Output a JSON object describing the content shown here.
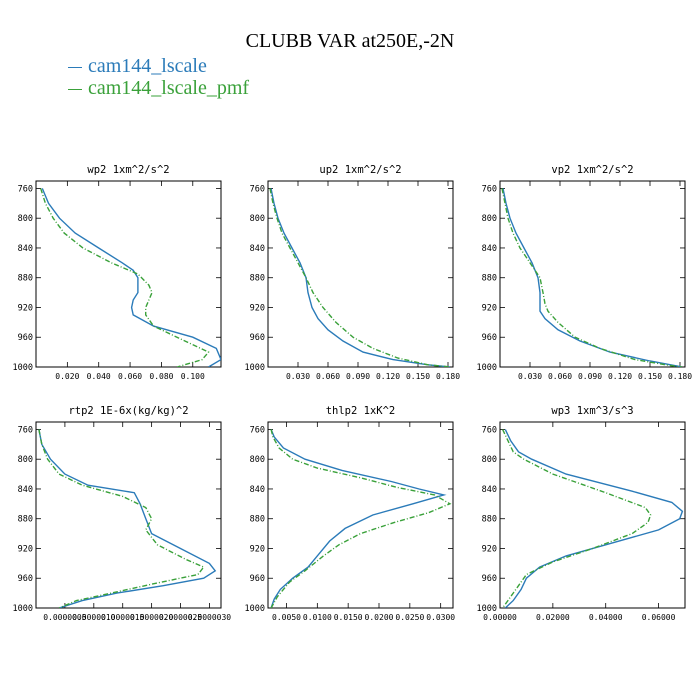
{
  "title": "CLUBB VAR at250E,-2N",
  "legend": [
    {
      "name": "cam144_lscale",
      "color": "#2b7bb9"
    },
    {
      "name": "cam144_lscale_pmf",
      "color": "#3aa13a"
    }
  ],
  "chart_data": [
    {
      "type": "line",
      "title": "wp2  1xm^2/s^2",
      "xlim": [
        0,
        0.118
      ],
      "ylim": [
        1000,
        750
      ],
      "xticks": [
        0.02,
        0.04,
        0.06,
        0.08,
        0.1
      ],
      "xticklabels": [
        "0.020",
        "0.040",
        "0.060",
        "0.080",
        "0.100"
      ],
      "yticks": [
        760,
        800,
        840,
        880,
        920,
        960,
        1000
      ],
      "series": [
        {
          "name": "cam144_lscale",
          "x": [
            0.004,
            0.008,
            0.015,
            0.025,
            0.04,
            0.055,
            0.062,
            0.065,
            0.065,
            0.062,
            0.061,
            0.062,
            0.075,
            0.1,
            0.115,
            0.118,
            0.11
          ],
          "y": [
            760,
            780,
            800,
            820,
            840,
            860,
            870,
            880,
            900,
            910,
            920,
            930,
            945,
            960,
            975,
            990,
            1000
          ]
        },
        {
          "name": "cam144_lscale_pmf",
          "x": [
            0.003,
            0.006,
            0.011,
            0.018,
            0.03,
            0.048,
            0.065,
            0.072,
            0.074,
            0.072,
            0.07,
            0.07,
            0.075,
            0.095,
            0.11,
            0.106,
            0.09
          ],
          "y": [
            760,
            780,
            800,
            820,
            840,
            860,
            875,
            890,
            900,
            910,
            920,
            930,
            945,
            965,
            980,
            990,
            1000
          ]
        }
      ]
    },
    {
      "type": "line",
      "title": "up2  1xm^2/s^2",
      "xlim": [
        0,
        0.185
      ],
      "ylim": [
        1000,
        750
      ],
      "xticks": [
        0.03,
        0.06,
        0.09,
        0.12,
        0.15,
        0.18
      ],
      "xticklabels": [
        "0.030",
        "0.060",
        "0.090",
        "0.120",
        "0.150",
        "0.180"
      ],
      "yticks": [
        760,
        800,
        840,
        880,
        920,
        960,
        1000
      ],
      "series": [
        {
          "name": "cam144_lscale",
          "x": [
            0.003,
            0.006,
            0.01,
            0.016,
            0.024,
            0.032,
            0.038,
            0.04,
            0.044,
            0.05,
            0.06,
            0.075,
            0.095,
            0.125,
            0.16,
            0.182
          ],
          "y": [
            760,
            780,
            800,
            820,
            840,
            860,
            880,
            900,
            920,
            935,
            950,
            965,
            980,
            990,
            997,
            1000
          ]
        },
        {
          "name": "cam144_lscale_pmf",
          "x": [
            0.002,
            0.005,
            0.009,
            0.014,
            0.022,
            0.03,
            0.038,
            0.045,
            0.055,
            0.068,
            0.085,
            0.105,
            0.13,
            0.16,
            0.182
          ],
          "y": [
            760,
            780,
            800,
            820,
            840,
            860,
            880,
            900,
            920,
            940,
            960,
            975,
            988,
            997,
            1000
          ]
        }
      ]
    },
    {
      "type": "line",
      "title": "vp2  1xm^2/s^2",
      "xlim": [
        0,
        0.185
      ],
      "ylim": [
        1000,
        750
      ],
      "xticks": [
        0.03,
        0.06,
        0.09,
        0.12,
        0.15,
        0.18
      ],
      "xticklabels": [
        "0.030",
        "0.060",
        "0.090",
        "0.120",
        "0.150",
        "0.180"
      ],
      "yticks": [
        760,
        800,
        840,
        880,
        920,
        960,
        1000
      ],
      "series": [
        {
          "name": "cam144_lscale",
          "x": [
            0.003,
            0.006,
            0.01,
            0.016,
            0.024,
            0.032,
            0.038,
            0.04,
            0.04,
            0.04,
            0.045,
            0.058,
            0.08,
            0.11,
            0.15,
            0.182
          ],
          "y": [
            760,
            780,
            800,
            820,
            840,
            860,
            880,
            900,
            915,
            925,
            935,
            950,
            965,
            980,
            992,
            1000
          ]
        },
        {
          "name": "cam144_lscale_pmf",
          "x": [
            0.002,
            0.005,
            0.008,
            0.013,
            0.02,
            0.03,
            0.04,
            0.043,
            0.045,
            0.048,
            0.058,
            0.075,
            0.1,
            0.135,
            0.17,
            0.182
          ],
          "y": [
            760,
            780,
            800,
            820,
            840,
            860,
            880,
            900,
            915,
            925,
            940,
            960,
            975,
            990,
            998,
            1000
          ]
        }
      ]
    },
    {
      "type": "line",
      "title": "rtp2  1E-6x(kg/kg)^2",
      "xlim": [
        0,
        3.2e-06
      ],
      "ylim": [
        1000,
        750
      ],
      "xticks": [
        5e-07,
        1e-06,
        1.5e-06,
        2e-06,
        2.5e-06,
        3e-06
      ],
      "xticklabels": [
        "0.0000005",
        "0.0000010",
        "0.0000015",
        "0.0000020",
        "0.0000025",
        "0.0000030"
      ],
      "yticks": [
        760,
        800,
        840,
        880,
        920,
        960,
        1000
      ],
      "series": [
        {
          "name": "cam144_lscale",
          "x": [
            5e-08,
            1e-07,
            2.5e-07,
            5e-07,
            9e-07,
            1.7e-06,
            1.8e-06,
            1.9e-06,
            2e-06,
            2.5e-06,
            3e-06,
            3.1e-06,
            2.9e-06,
            2.2e-06,
            1.4e-06,
            8e-07,
            4e-07
          ],
          "y": [
            760,
            780,
            800,
            820,
            835,
            845,
            860,
            880,
            900,
            920,
            940,
            950,
            960,
            970,
            980,
            990,
            1000
          ]
        },
        {
          "name": "cam144_lscale_pmf",
          "x": [
            5e-08,
            1e-07,
            2e-07,
            4e-07,
            8e-07,
            1.5e-06,
            1.9e-06,
            2e-06,
            1.9e-06,
            2.1e-06,
            2.6e-06,
            2.9e-06,
            2.8e-06,
            2e-06,
            1.3e-06,
            7e-07,
            4e-07
          ],
          "y": [
            760,
            780,
            800,
            820,
            835,
            850,
            865,
            880,
            895,
            915,
            935,
            945,
            955,
            968,
            980,
            990,
            1000
          ]
        }
      ]
    },
    {
      "type": "line",
      "title": "thlp2  1xK^2",
      "xlim": [
        0.002,
        0.032
      ],
      "ylim": [
        1000,
        750
      ],
      "xticks": [
        0.005,
        0.01,
        0.015,
        0.02,
        0.025,
        0.03
      ],
      "xticklabels": [
        "0.0050",
        "0.0100",
        "0.0150",
        "0.0200",
        "0.0250",
        "0.0300"
      ],
      "yticks": [
        760,
        800,
        840,
        880,
        920,
        960,
        1000
      ],
      "series": [
        {
          "name": "cam144_lscale",
          "x": [
            0.0025,
            0.003,
            0.0045,
            0.008,
            0.014,
            0.022,
            0.0265,
            0.0305,
            0.0255,
            0.019,
            0.0145,
            0.012,
            0.01,
            0.0085,
            0.006,
            0.004,
            0.003,
            0.0025
          ],
          "y": [
            760,
            770,
            785,
            800,
            815,
            830,
            840,
            848,
            860,
            875,
            893,
            910,
            930,
            945,
            960,
            975,
            988,
            1000
          ]
        },
        {
          "name": "cam144_lscale_pmf",
          "x": [
            0.0025,
            0.0028,
            0.0038,
            0.006,
            0.01,
            0.017,
            0.023,
            0.029,
            0.0315,
            0.028,
            0.0225,
            0.017,
            0.0135,
            0.011,
            0.008,
            0.0055,
            0.0035,
            0.0025
          ],
          "y": [
            760,
            770,
            785,
            800,
            812,
            825,
            838,
            848,
            860,
            872,
            885,
            900,
            915,
            930,
            950,
            965,
            985,
            1000
          ]
        }
      ]
    },
    {
      "type": "line",
      "title": "wp3  1xm^3/s^3",
      "xlim": [
        0,
        0.07
      ],
      "ylim": [
        1000,
        750
      ],
      "xticks": [
        0,
        0.02,
        0.04,
        0.06
      ],
      "xticklabels": [
        "0.00000",
        "0.02000",
        "0.04000",
        "0.06000"
      ],
      "yticks": [
        760,
        800,
        840,
        880,
        920,
        960,
        1000
      ],
      "series": [
        {
          "name": "cam144_lscale",
          "x": [
            0.002,
            0.004,
            0.007,
            0.012,
            0.025,
            0.05,
            0.065,
            0.069,
            0.068,
            0.06,
            0.04,
            0.025,
            0.015,
            0.01,
            0.008,
            0.005,
            0.002
          ],
          "y": [
            760,
            775,
            790,
            800,
            820,
            843,
            858,
            870,
            880,
            895,
            915,
            930,
            945,
            960,
            975,
            990,
            1000
          ]
        },
        {
          "name": "cam144_lscale_pmf",
          "x": [
            0.001,
            0.003,
            0.005,
            0.009,
            0.02,
            0.04,
            0.055,
            0.057,
            0.056,
            0.05,
            0.035,
            0.02,
            0.01,
            0.007,
            0.005,
            0.003,
            0.001
          ],
          "y": [
            760,
            775,
            790,
            800,
            820,
            845,
            865,
            875,
            885,
            900,
            920,
            938,
            955,
            970,
            980,
            990,
            1000
          ]
        }
      ]
    }
  ]
}
